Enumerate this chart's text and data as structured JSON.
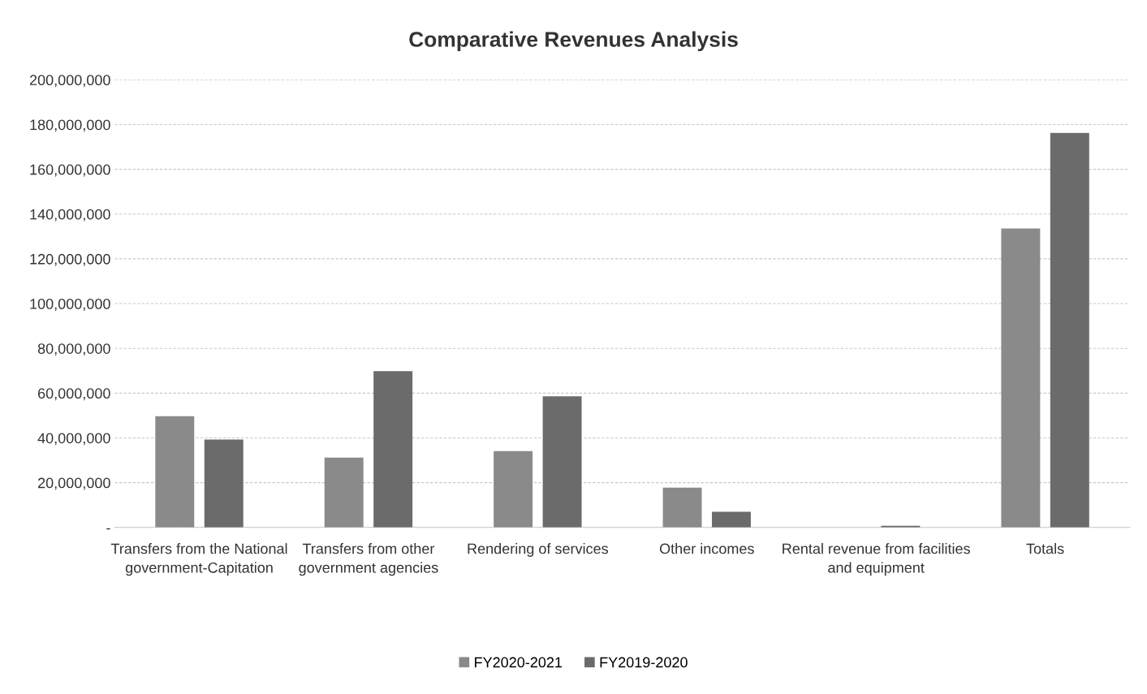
{
  "chart_data": {
    "type": "bar",
    "title": "Comparative Revenues Analysis",
    "categories": [
      "Transfers from the National government-Capitation",
      "Transfers from other government agencies",
      "Rendering of services",
      "Other incomes",
      "Rental revenue from facilities and equipment",
      "Totals"
    ],
    "series": [
      {
        "name": "FY2020-2021",
        "color": "#8a8a8a",
        "values": [
          49700000,
          31200000,
          34100000,
          17800000,
          0,
          133600000
        ]
      },
      {
        "name": "FY2019-2020",
        "color": "#6b6b6b",
        "values": [
          39300000,
          69800000,
          58600000,
          7000000,
          700000,
          176300000
        ]
      }
    ],
    "ylim": [
      0,
      200000000
    ],
    "yticks": [
      {
        "value": 0,
        "label": "-"
      },
      {
        "value": 20000000,
        "label": "20,000,000"
      },
      {
        "value": 40000000,
        "label": "40,000,000"
      },
      {
        "value": 60000000,
        "label": "60,000,000"
      },
      {
        "value": 80000000,
        "label": "80,000,000"
      },
      {
        "value": 100000000,
        "label": "100,000,000"
      },
      {
        "value": 120000000,
        "label": "120,000,000"
      },
      {
        "value": 140000000,
        "label": "140,000,000"
      },
      {
        "value": 160000000,
        "label": "160,000,000"
      },
      {
        "value": 180000000,
        "label": "180,000,000"
      },
      {
        "value": 200000000,
        "label": "200,000,000"
      }
    ],
    "grid": "y",
    "legend": "bottom"
  }
}
